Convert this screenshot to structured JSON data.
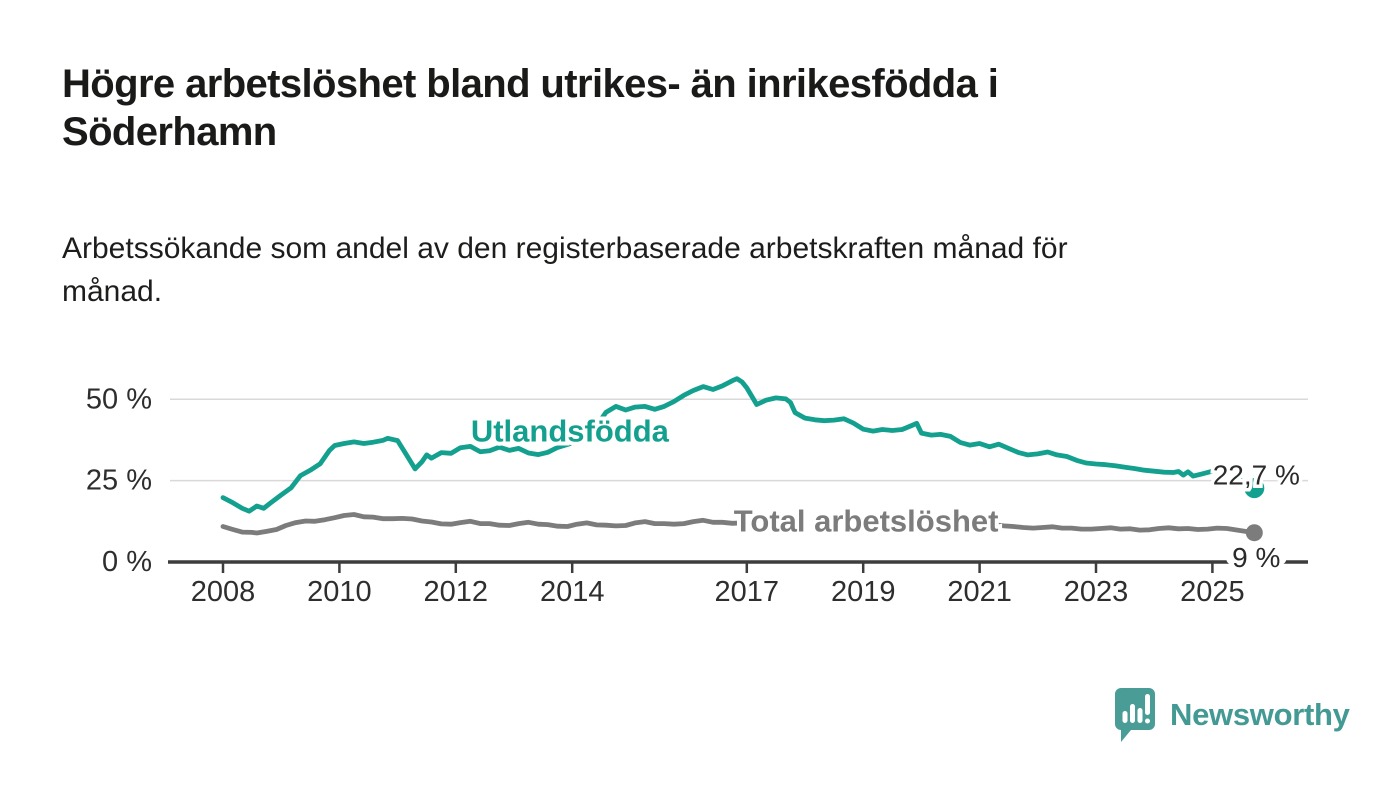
{
  "header": {
    "title_lines": {
      "line1": "Högre arbetslöshet bland utrikes- än inrikesfödda i",
      "line2": "Söderhamn"
    },
    "subtitle_lines": {
      "line1": "Arbetssökande som andel av den registerbaserade arbetskraften månad för",
      "line2": "månad."
    }
  },
  "branding": {
    "name": "Newsworthy",
    "color": "#439993",
    "icon": "bar-chart-speech-bubble-icon"
  },
  "chart_data": {
    "type": "line",
    "title": "",
    "xlabel": "",
    "ylabel": "",
    "ylim": [
      0,
      58
    ],
    "xlim": [
      2007.1,
      2026.6
    ],
    "grid": "horizontal-only",
    "legend_position": "inline-labels",
    "x_ticks": [
      {
        "year": 2008,
        "label": "2008"
      },
      {
        "year": 2010,
        "label": "2010"
      },
      {
        "year": 2012,
        "label": "2012"
      },
      {
        "year": 2014,
        "label": "2014"
      },
      {
        "year": 2017,
        "label": "2017"
      },
      {
        "year": 2019,
        "label": "2019"
      },
      {
        "year": 2021,
        "label": "2021"
      },
      {
        "year": 2023,
        "label": "2023"
      },
      {
        "year": 2025,
        "label": "2025"
      }
    ],
    "y_ticks": [
      {
        "value": 0,
        "label": "0 %"
      },
      {
        "value": 25,
        "label": "25 %"
      },
      {
        "value": 50,
        "label": "50 %"
      }
    ],
    "series": [
      {
        "name": "Total arbetslöshet",
        "color": "#7c7c7c",
        "label_at": {
          "year": 2019.05,
          "pct": 12.55
        },
        "label_bg": true,
        "end_dot": {
          "year": 2025.72,
          "value": 9,
          "label": "9 %",
          "connected": true,
          "label_position": "below"
        },
        "points": [
          [
            2008.0,
            10.9
          ],
          [
            2008.17,
            10.0
          ],
          [
            2008.33,
            9.2
          ],
          [
            2008.5,
            9.1
          ],
          [
            2008.58,
            8.9
          ],
          [
            2008.75,
            9.4
          ],
          [
            2008.92,
            10.0
          ],
          [
            2009.08,
            11.2
          ],
          [
            2009.25,
            12.1
          ],
          [
            2009.42,
            12.6
          ],
          [
            2009.58,
            12.5
          ],
          [
            2009.75,
            13.0
          ],
          [
            2009.92,
            13.6
          ],
          [
            2010.08,
            14.3
          ],
          [
            2010.25,
            14.6
          ],
          [
            2010.42,
            13.9
          ],
          [
            2010.58,
            13.8
          ],
          [
            2010.75,
            13.3
          ],
          [
            2010.92,
            13.3
          ],
          [
            2011.08,
            13.4
          ],
          [
            2011.25,
            13.2
          ],
          [
            2011.42,
            12.6
          ],
          [
            2011.58,
            12.3
          ],
          [
            2011.75,
            11.7
          ],
          [
            2011.92,
            11.6
          ],
          [
            2012.08,
            12.1
          ],
          [
            2012.25,
            12.5
          ],
          [
            2012.42,
            11.8
          ],
          [
            2012.58,
            11.8
          ],
          [
            2012.75,
            11.3
          ],
          [
            2012.92,
            11.2
          ],
          [
            2013.08,
            11.8
          ],
          [
            2013.25,
            12.2
          ],
          [
            2013.42,
            11.6
          ],
          [
            2013.58,
            11.5
          ],
          [
            2013.75,
            11.0
          ],
          [
            2013.92,
            10.9
          ],
          [
            2014.08,
            11.6
          ],
          [
            2014.25,
            12.0
          ],
          [
            2014.42,
            11.4
          ],
          [
            2014.58,
            11.3
          ],
          [
            2014.75,
            11.1
          ],
          [
            2014.92,
            11.2
          ],
          [
            2015.08,
            12.0
          ],
          [
            2015.25,
            12.4
          ],
          [
            2015.42,
            11.8
          ],
          [
            2015.58,
            11.8
          ],
          [
            2015.75,
            11.6
          ],
          [
            2015.92,
            11.8
          ],
          [
            2016.08,
            12.4
          ],
          [
            2016.25,
            12.8
          ],
          [
            2016.42,
            12.2
          ],
          [
            2016.58,
            12.2
          ],
          [
            2016.75,
            11.9
          ],
          [
            2016.92,
            12.0
          ],
          [
            2017.08,
            12.6
          ],
          [
            2017.25,
            13.0
          ],
          [
            2017.42,
            12.4
          ],
          [
            2017.58,
            12.5
          ],
          [
            2017.75,
            12.1
          ],
          [
            2017.92,
            12.0
          ],
          [
            2018.08,
            12.3
          ],
          [
            2018.25,
            12.6
          ],
          [
            2018.42,
            12.0
          ],
          [
            2018.58,
            11.9
          ],
          [
            2018.75,
            11.7
          ],
          [
            2018.92,
            11.6
          ],
          [
            2019.08,
            11.8
          ],
          [
            2019.25,
            12.0
          ],
          [
            2019.42,
            11.5
          ],
          [
            2019.58,
            11.4
          ],
          [
            2019.75,
            11.2
          ],
          [
            2019.92,
            11.2
          ],
          [
            2020.08,
            11.4
          ],
          [
            2020.25,
            11.8
          ],
          [
            2020.42,
            11.9
          ],
          [
            2020.58,
            11.7
          ],
          [
            2020.75,
            11.4
          ],
          [
            2020.92,
            11.2
          ],
          [
            2021.08,
            11.4
          ],
          [
            2021.25,
            11.5
          ],
          [
            2021.42,
            11.1
          ],
          [
            2021.58,
            10.9
          ],
          [
            2021.75,
            10.6
          ],
          [
            2021.92,
            10.4
          ],
          [
            2022.08,
            10.6
          ],
          [
            2022.25,
            10.8
          ],
          [
            2022.42,
            10.4
          ],
          [
            2022.58,
            10.4
          ],
          [
            2022.75,
            10.1
          ],
          [
            2022.92,
            10.1
          ],
          [
            2023.08,
            10.3
          ],
          [
            2023.25,
            10.5
          ],
          [
            2023.42,
            10.1
          ],
          [
            2023.58,
            10.2
          ],
          [
            2023.75,
            9.8
          ],
          [
            2023.92,
            9.9
          ],
          [
            2024.08,
            10.3
          ],
          [
            2024.25,
            10.5
          ],
          [
            2024.42,
            10.2
          ],
          [
            2024.58,
            10.3
          ],
          [
            2024.75,
            10.0
          ],
          [
            2024.92,
            10.1
          ],
          [
            2025.08,
            10.4
          ],
          [
            2025.25,
            10.3
          ]
        ]
      },
      {
        "name": "Utlandsfödda",
        "color": "#13a08f",
        "label_at": {
          "year": 2013.96,
          "pct": 40.3
        },
        "label_bg": false,
        "end_dot": {
          "year": 2025.72,
          "value": 22.7,
          "label": "22,7 %",
          "connected": false,
          "label_position": "above"
        },
        "points": [
          [
            2008.0,
            19.8
          ],
          [
            2008.17,
            18.2
          ],
          [
            2008.33,
            16.5
          ],
          [
            2008.45,
            15.6
          ],
          [
            2008.58,
            17.2
          ],
          [
            2008.7,
            16.5
          ],
          [
            2008.83,
            18.3
          ],
          [
            2009.0,
            20.6
          ],
          [
            2009.17,
            22.8
          ],
          [
            2009.33,
            26.5
          ],
          [
            2009.5,
            28.2
          ],
          [
            2009.67,
            30.2
          ],
          [
            2009.83,
            34.3
          ],
          [
            2009.92,
            35.8
          ],
          [
            2010.08,
            36.4
          ],
          [
            2010.25,
            36.9
          ],
          [
            2010.42,
            36.4
          ],
          [
            2010.58,
            36.8
          ],
          [
            2010.75,
            37.4
          ],
          [
            2010.83,
            38.0
          ],
          [
            2011.0,
            37.3
          ],
          [
            2011.17,
            32.4
          ],
          [
            2011.3,
            28.6
          ],
          [
            2011.42,
            30.8
          ],
          [
            2011.5,
            32.9
          ],
          [
            2011.58,
            31.9
          ],
          [
            2011.75,
            33.6
          ],
          [
            2011.92,
            33.4
          ],
          [
            2012.08,
            35.1
          ],
          [
            2012.25,
            35.5
          ],
          [
            2012.42,
            33.9
          ],
          [
            2012.58,
            34.2
          ],
          [
            2012.75,
            35.3
          ],
          [
            2012.92,
            34.3
          ],
          [
            2013.08,
            34.9
          ],
          [
            2013.25,
            33.5
          ],
          [
            2013.42,
            33.0
          ],
          [
            2013.58,
            33.7
          ],
          [
            2013.75,
            35.2
          ],
          [
            2013.92,
            36.1
          ],
          [
            2014.08,
            37.1
          ],
          [
            2014.25,
            38.2
          ],
          [
            2014.42,
            41.8
          ],
          [
            2014.58,
            46.0
          ],
          [
            2014.75,
            47.8
          ],
          [
            2014.92,
            46.7
          ],
          [
            2015.08,
            47.6
          ],
          [
            2015.25,
            47.8
          ],
          [
            2015.42,
            46.9
          ],
          [
            2015.58,
            47.8
          ],
          [
            2015.75,
            49.3
          ],
          [
            2015.92,
            51.2
          ],
          [
            2016.08,
            52.7
          ],
          [
            2016.25,
            53.9
          ],
          [
            2016.42,
            53.0
          ],
          [
            2016.58,
            54.1
          ],
          [
            2016.75,
            55.7
          ],
          [
            2016.83,
            56.3
          ],
          [
            2016.92,
            55.3
          ],
          [
            2017.0,
            53.5
          ],
          [
            2017.1,
            50.5
          ],
          [
            2017.17,
            48.4
          ],
          [
            2017.33,
            49.7
          ],
          [
            2017.5,
            50.4
          ],
          [
            2017.67,
            50.1
          ],
          [
            2017.75,
            49.0
          ],
          [
            2017.83,
            45.9
          ],
          [
            2018.0,
            44.2
          ],
          [
            2018.17,
            43.7
          ],
          [
            2018.33,
            43.4
          ],
          [
            2018.5,
            43.6
          ],
          [
            2018.67,
            44.0
          ],
          [
            2018.83,
            42.7
          ],
          [
            2019.0,
            40.8
          ],
          [
            2019.17,
            40.2
          ],
          [
            2019.33,
            40.7
          ],
          [
            2019.5,
            40.4
          ],
          [
            2019.67,
            40.7
          ],
          [
            2019.83,
            41.9
          ],
          [
            2019.92,
            42.6
          ],
          [
            2020.0,
            39.6
          ],
          [
            2020.17,
            39.0
          ],
          [
            2020.33,
            39.2
          ],
          [
            2020.5,
            38.6
          ],
          [
            2020.67,
            36.7
          ],
          [
            2020.83,
            35.9
          ],
          [
            2021.0,
            36.4
          ],
          [
            2021.17,
            35.4
          ],
          [
            2021.33,
            36.2
          ],
          [
            2021.5,
            34.9
          ],
          [
            2021.67,
            33.6
          ],
          [
            2021.83,
            32.9
          ],
          [
            2022.0,
            33.2
          ],
          [
            2022.17,
            33.8
          ],
          [
            2022.33,
            32.9
          ],
          [
            2022.5,
            32.4
          ],
          [
            2022.67,
            31.2
          ],
          [
            2022.83,
            30.4
          ],
          [
            2023.0,
            30.1
          ],
          [
            2023.17,
            29.9
          ],
          [
            2023.33,
            29.6
          ],
          [
            2023.5,
            29.1
          ],
          [
            2023.67,
            28.7
          ],
          [
            2023.83,
            28.2
          ],
          [
            2024.0,
            27.9
          ],
          [
            2024.17,
            27.6
          ],
          [
            2024.33,
            27.5
          ],
          [
            2024.42,
            27.8
          ],
          [
            2024.5,
            26.7
          ],
          [
            2024.58,
            27.7
          ],
          [
            2024.67,
            26.4
          ],
          [
            2024.83,
            27.1
          ],
          [
            2025.0,
            27.9
          ],
          [
            2025.08,
            28.5
          ],
          [
            2025.17,
            29.2
          ]
        ]
      }
    ]
  }
}
